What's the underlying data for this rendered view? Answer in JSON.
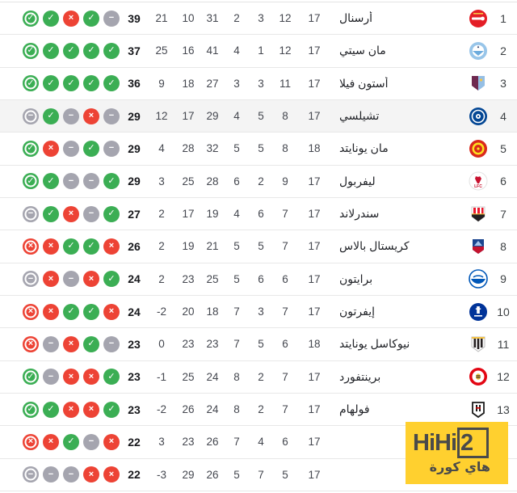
{
  "watermark": {
    "brand": "HiHi2",
    "brand_prefix": "HiHi",
    "brand_suffix": "2",
    "subtitle": "هاي كورة",
    "bg_color": "#FFD02F",
    "text_color": "#4A4A4A"
  },
  "form_colors": {
    "win": "#3BAE54",
    "loss": "#ED4335",
    "draw": "#A5A5AF"
  },
  "chart_data": {
    "type": "table",
    "direction": "rtl",
    "columns_rtl_order": [
      "position",
      "team",
      "played",
      "wins",
      "draws",
      "losses",
      "goals_for",
      "goals_against",
      "goal_diff",
      "points",
      "form_last5"
    ],
    "rows": [
      {
        "pos": "1",
        "team": "أرسنال",
        "badge": "arsenal",
        "played": "17",
        "wins": "12",
        "draws": "3",
        "losses": "2",
        "gf": "31",
        "ga": "10",
        "gd": "21",
        "points": "39",
        "form": [
          "w",
          "w",
          "l",
          "w",
          "d"
        ],
        "highlighted": false
      },
      {
        "pos": "2",
        "team": "مان سيتي",
        "badge": "mancity",
        "played": "17",
        "wins": "12",
        "draws": "1",
        "losses": "4",
        "gf": "41",
        "ga": "16",
        "gd": "25",
        "points": "37",
        "form": [
          "w",
          "w",
          "w",
          "w",
          "w"
        ],
        "highlighted": false
      },
      {
        "pos": "3",
        "team": "أستون فيلا",
        "badge": "astonvilla",
        "played": "17",
        "wins": "11",
        "draws": "3",
        "losses": "3",
        "gf": "27",
        "ga": "18",
        "gd": "9",
        "points": "36",
        "form": [
          "w",
          "w",
          "w",
          "w",
          "w"
        ],
        "highlighted": false
      },
      {
        "pos": "4",
        "team": "تشيلسي",
        "badge": "chelsea",
        "played": "17",
        "wins": "8",
        "draws": "5",
        "losses": "4",
        "gf": "29",
        "ga": "17",
        "gd": "12",
        "points": "29",
        "form": [
          "d",
          "w",
          "d",
          "l",
          "d"
        ],
        "highlighted": true
      },
      {
        "pos": "5",
        "team": "مان يونايتد",
        "badge": "manutd",
        "played": "18",
        "wins": "8",
        "draws": "5",
        "losses": "5",
        "gf": "32",
        "ga": "28",
        "gd": "4",
        "points": "29",
        "form": [
          "w",
          "l",
          "d",
          "w",
          "d"
        ],
        "highlighted": false
      },
      {
        "pos": "6",
        "team": "ليفربول",
        "badge": "liverpool",
        "played": "17",
        "wins": "9",
        "draws": "2",
        "losses": "6",
        "gf": "28",
        "ga": "25",
        "gd": "3",
        "points": "29",
        "form": [
          "w",
          "w",
          "d",
          "d",
          "w"
        ],
        "highlighted": false
      },
      {
        "pos": "7",
        "team": "سندرلاند",
        "badge": "sunderland",
        "played": "17",
        "wins": "7",
        "draws": "6",
        "losses": "4",
        "gf": "19",
        "ga": "17",
        "gd": "2",
        "points": "27",
        "form": [
          "d",
          "w",
          "l",
          "d",
          "w"
        ],
        "highlighted": false
      },
      {
        "pos": "8",
        "team": "كريستال بالاس",
        "badge": "crystalpalace",
        "played": "17",
        "wins": "7",
        "draws": "5",
        "losses": "5",
        "gf": "21",
        "ga": "19",
        "gd": "2",
        "points": "26",
        "form": [
          "l",
          "l",
          "w",
          "w",
          "l"
        ],
        "highlighted": false
      },
      {
        "pos": "9",
        "team": "برايتون",
        "badge": "brighton",
        "played": "17",
        "wins": "6",
        "draws": "6",
        "losses": "5",
        "gf": "25",
        "ga": "23",
        "gd": "2",
        "points": "24",
        "form": [
          "d",
          "l",
          "d",
          "l",
          "w"
        ],
        "highlighted": false
      },
      {
        "pos": "10",
        "team": "إيفرتون",
        "badge": "everton",
        "played": "17",
        "wins": "7",
        "draws": "3",
        "losses": "7",
        "gf": "18",
        "ga": "20",
        "gd": "-2",
        "points": "24",
        "form": [
          "l",
          "l",
          "w",
          "w",
          "l"
        ],
        "highlighted": false
      },
      {
        "pos": "11",
        "team": "نيوكاسل يونايتد",
        "badge": "newcastle",
        "played": "18",
        "wins": "6",
        "draws": "5",
        "losses": "7",
        "gf": "23",
        "ga": "23",
        "gd": "0",
        "points": "23",
        "form": [
          "l",
          "d",
          "l",
          "w",
          "d"
        ],
        "highlighted": false
      },
      {
        "pos": "12",
        "team": "برينتفورد",
        "badge": "brentford",
        "played": "17",
        "wins": "7",
        "draws": "2",
        "losses": "8",
        "gf": "24",
        "ga": "25",
        "gd": "-1",
        "points": "23",
        "form": [
          "w",
          "d",
          "l",
          "l",
          "w"
        ],
        "highlighted": false
      },
      {
        "pos": "13",
        "team": "فولهام",
        "badge": "fulham",
        "played": "17",
        "wins": "7",
        "draws": "2",
        "losses": "8",
        "gf": "24",
        "ga": "26",
        "gd": "-2",
        "points": "23",
        "form": [
          "w",
          "w",
          "l",
          "l",
          "w"
        ],
        "highlighted": false
      },
      {
        "pos": "",
        "team": "",
        "badge": "",
        "played": "17",
        "wins": "6",
        "draws": "4",
        "losses": "7",
        "gf": "26",
        "ga": "23",
        "gd": "3",
        "points": "22",
        "form": [
          "l",
          "l",
          "w",
          "d",
          "l"
        ],
        "highlighted": false
      },
      {
        "pos": "",
        "team": "",
        "badge": "",
        "played": "17",
        "wins": "5",
        "draws": "7",
        "losses": "5",
        "gf": "26",
        "ga": "29",
        "gd": "-3",
        "points": "22",
        "form": [
          "d",
          "d",
          "d",
          "l",
          "l"
        ],
        "highlighted": false
      }
    ]
  }
}
